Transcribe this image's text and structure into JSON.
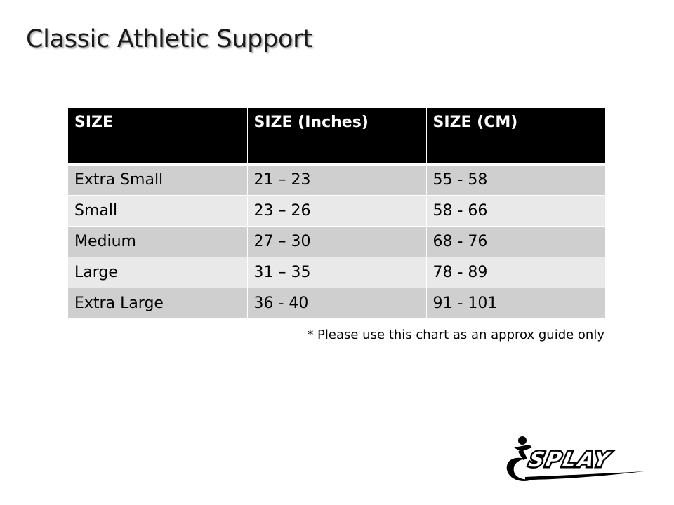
{
  "title": "Classic Athletic Support",
  "table": {
    "headers": [
      "SIZE",
      "SIZE (Inches)",
      "SIZE (CM)"
    ],
    "rows": [
      [
        "Extra Small",
        "21 – 23",
        "55 - 58"
      ],
      [
        "Small",
        "23 – 26",
        "58 - 66"
      ],
      [
        "Medium",
        "27 – 30",
        "68 - 76"
      ],
      [
        "Large",
        "31 – 35",
        "78 - 89"
      ],
      [
        "Extra Large",
        "36 - 40",
        "91 - 101"
      ]
    ]
  },
  "note": "* Please use this chart as an approx guide only",
  "logo": {
    "text": "SPLAY",
    "icon": "athlete-swoosh-icon",
    "color": "#000000"
  },
  "colors": {
    "header_bg": "#000000",
    "header_text": "#ffffff",
    "row_dark": "#cfcfcf",
    "row_light": "#e9e9e9"
  }
}
